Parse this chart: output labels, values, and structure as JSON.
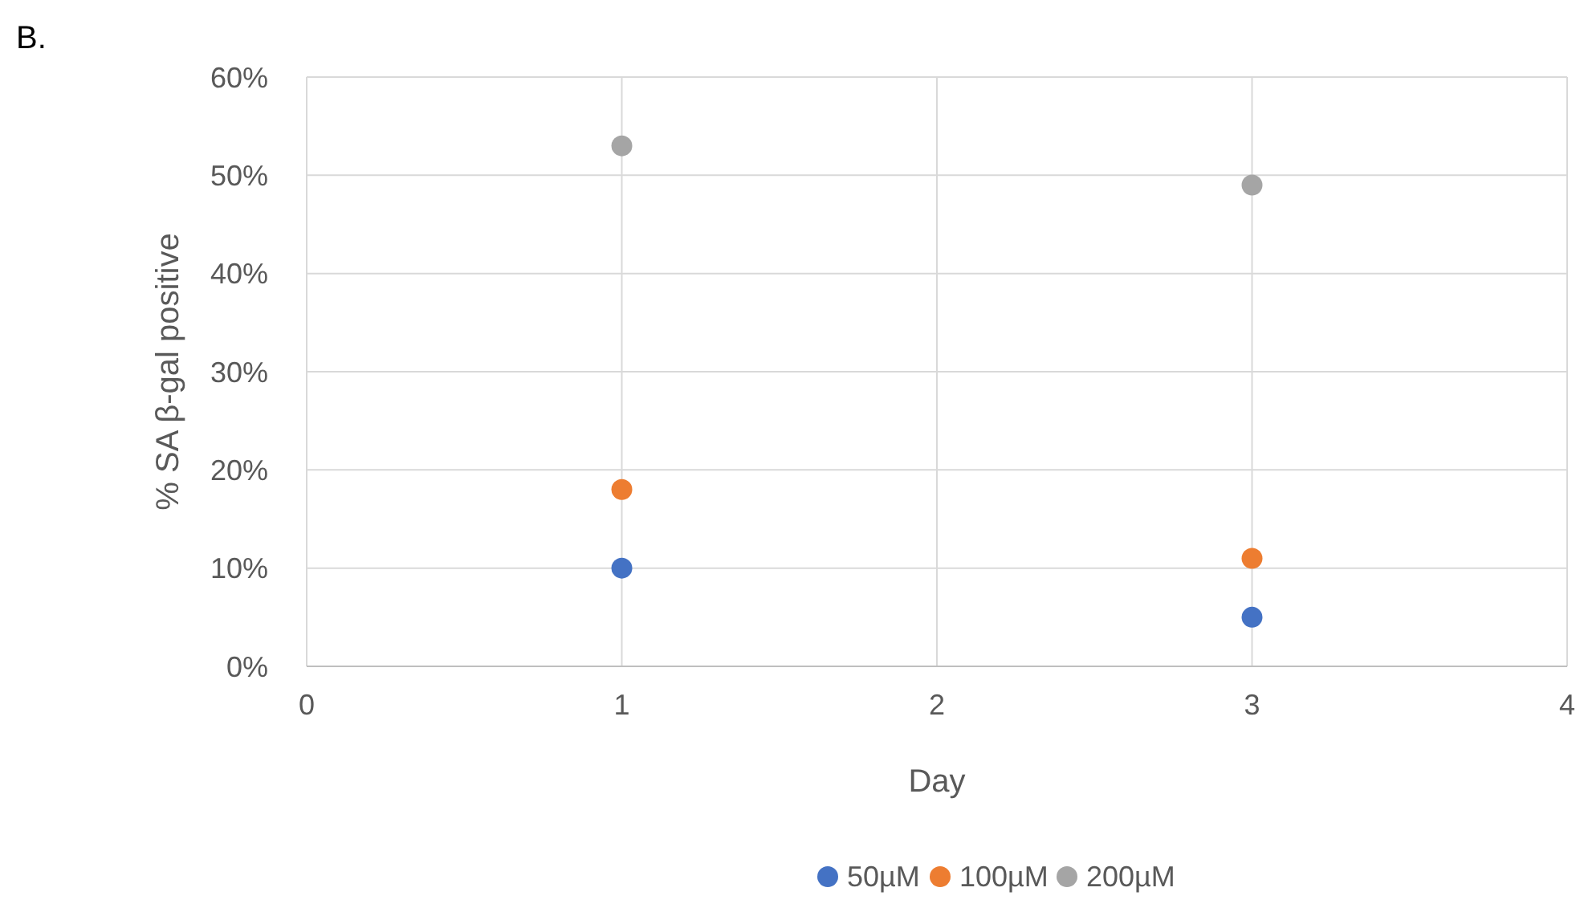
{
  "chart_data": {
    "type": "scatter",
    "xlabel": "Day",
    "ylabel": "% SA β-gal positive",
    "annotations": [
      "B."
    ],
    "x": [
      1,
      3
    ],
    "series": [
      {
        "name": "50µM",
        "color": "#4472c4",
        "values": [
          10,
          5
        ]
      },
      {
        "name": "100µM",
        "color": "#ed7d31",
        "values": [
          18,
          11
        ]
      },
      {
        "name": "200µM",
        "color": "#a5a5a5",
        "values": [
          53,
          49
        ]
      }
    ],
    "xlim": [
      0,
      4
    ],
    "xticks": [
      0,
      1,
      2,
      3,
      4
    ],
    "ylim": [
      0,
      60
    ],
    "yticks": [
      {
        "value": 0,
        "label": "0%"
      },
      {
        "value": 10,
        "label": "10%"
      },
      {
        "value": 20,
        "label": "20%"
      },
      {
        "value": 30,
        "label": "30%"
      },
      {
        "value": 40,
        "label": "40%"
      },
      {
        "value": 50,
        "label": "50%"
      },
      {
        "value": 60,
        "label": "60%"
      }
    ],
    "grid": true,
    "legend": "bottom",
    "marker": "circle"
  }
}
